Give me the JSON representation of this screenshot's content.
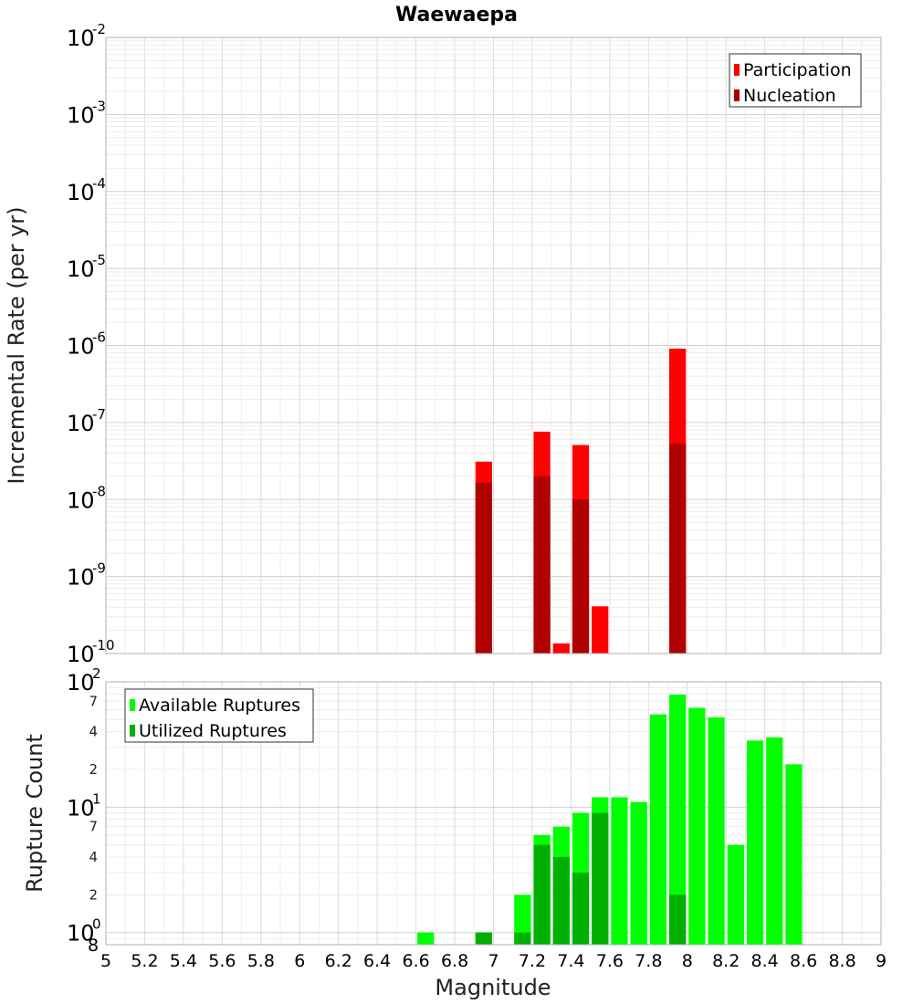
{
  "chart_data": {
    "title": "Waewaepa",
    "xlabel": "Magnitude",
    "xlim": [
      5,
      9
    ],
    "xticks": [
      "5",
      "5.2",
      "5.4",
      "5.6",
      "5.8",
      "6",
      "6.2",
      "6.4",
      "6.6",
      "6.8",
      "7",
      "7.2",
      "7.4",
      "7.6",
      "7.8",
      "8",
      "8.2",
      "8.4",
      "8.6",
      "8.8",
      "9"
    ],
    "bin_width": 0.1,
    "panels": [
      {
        "type": "bar",
        "ylabel": "Incremental Rate (per yr)",
        "yscale": "log",
        "ylim": [
          1e-10,
          0.01
        ],
        "ytick_exponents": [
          "-10",
          "-9",
          "-8",
          "-7",
          "-6",
          "-5",
          "-4",
          "-3",
          "-2"
        ],
        "legend_position": "top-right",
        "series": [
          {
            "name": "Participation",
            "color": "#ff0000",
            "x": [
              6.95,
              7.25,
              7.35,
              7.45,
              7.55,
              7.95
            ],
            "values": [
              3.1e-08,
              7.6e-08,
              1.35e-10,
              5.1e-08,
              4.1e-10,
              9.1e-07
            ]
          },
          {
            "name": "Nucleation",
            "color": "#b00000",
            "x": [
              6.95,
              7.25,
              7.45,
              7.95
            ],
            "values": [
              1.65e-08,
              2e-08,
              1e-08,
              5.3e-08
            ]
          }
        ]
      },
      {
        "type": "bar",
        "ylabel": "Rupture Count",
        "yscale": "log",
        "ylim": [
          0.8,
          100
        ],
        "major_tick_exponents": [
          "0",
          "1",
          "2"
        ],
        "bottom_tick_label": "8",
        "minor_tick_labels": [
          "2",
          "4",
          "7",
          "2",
          "4",
          "7"
        ],
        "legend_position": "top-left",
        "series": [
          {
            "name": "Available Ruptures",
            "color": "#00ff00",
            "x": [
              6.65,
              6.95,
              7.15,
              7.25,
              7.35,
              7.45,
              7.55,
              7.65,
              7.75,
              7.85,
              7.95,
              8.05,
              8.15,
              8.25,
              8.35,
              8.45,
              8.55
            ],
            "values": [
              1,
              1,
              2,
              6,
              7,
              9,
              12,
              12,
              11,
              55,
              79,
              62,
              52,
              5,
              34,
              36,
              22
            ]
          },
          {
            "name": "Utilized Ruptures",
            "color": "#00b000",
            "x": [
              6.95,
              7.15,
              7.25,
              7.35,
              7.45,
              7.55,
              7.95
            ],
            "values": [
              1,
              1,
              5,
              4,
              3,
              9,
              2
            ]
          }
        ]
      }
    ]
  }
}
